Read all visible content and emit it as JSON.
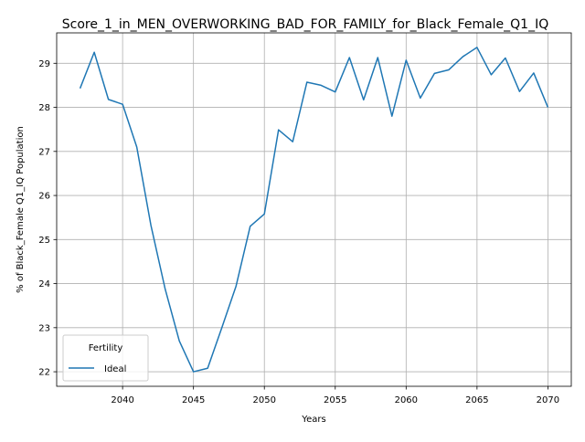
{
  "chart_data": {
    "type": "line",
    "title": "Score_1_in_MEN_OVERWORKING_BAD_FOR_FAMILY_for_Black_Female_Q1_IQ",
    "xlabel": "Years",
    "ylabel": "% of Black_Female Q1_IQ Population",
    "xlim": [
      2035.35,
      2071.65
    ],
    "ylim": [
      21.67,
      29.69
    ],
    "xticks": [
      2040,
      2045,
      2050,
      2055,
      2060,
      2065,
      2070
    ],
    "yticks": [
      22,
      23,
      24,
      25,
      26,
      27,
      28,
      29
    ],
    "grid": true,
    "legend": {
      "title": "Fertility",
      "position": "lower-left"
    },
    "series": [
      {
        "name": "Ideal",
        "color": "#1f77b4",
        "x": [
          2037,
          2038,
          2039,
          2040,
          2041,
          2042,
          2043,
          2044,
          2045,
          2046,
          2047,
          2048,
          2049,
          2050,
          2051,
          2052,
          2053,
          2054,
          2055,
          2056,
          2057,
          2058,
          2059,
          2060,
          2061,
          2062,
          2063,
          2064,
          2065,
          2066,
          2067,
          2068,
          2069,
          2070
        ],
        "y": [
          28.43,
          29.25,
          28.18,
          28.07,
          27.1,
          25.32,
          23.88,
          22.7,
          22.0,
          22.08,
          23.0,
          23.94,
          25.3,
          25.58,
          27.49,
          27.22,
          28.57,
          28.5,
          28.35,
          29.13,
          28.17,
          29.13,
          27.8,
          29.07,
          28.21,
          28.77,
          28.85,
          29.15,
          29.36,
          28.74,
          29.12,
          28.36,
          28.78,
          28.0
        ]
      }
    ]
  }
}
